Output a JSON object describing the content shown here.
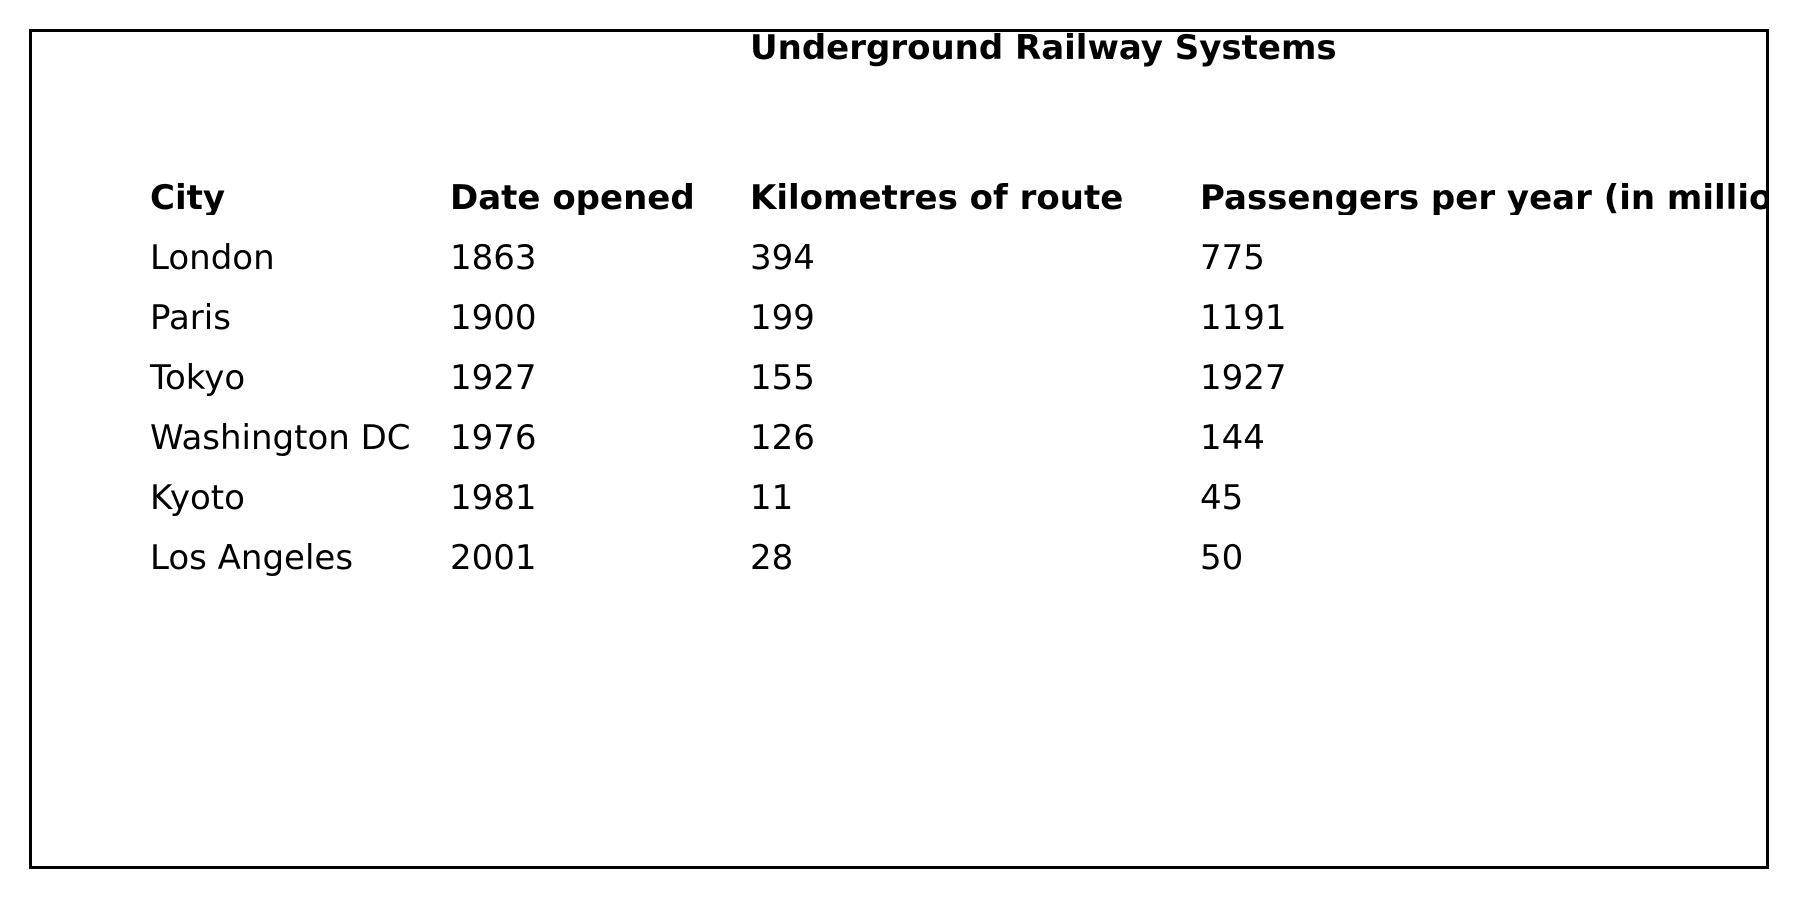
{
  "chart_data": {
    "type": "table",
    "title": "Underground Railway Systems",
    "columns": [
      "City",
      "Date opened",
      "Kilometres of route",
      "Passengers per year (in millio"
    ],
    "rows": [
      [
        "London",
        "1863",
        "394",
        "775"
      ],
      [
        "Paris",
        "1900",
        "199",
        "1191"
      ],
      [
        "Tokyo",
        "1927",
        "155",
        "1927"
      ],
      [
        "Washington DC",
        "1976",
        "126",
        "144"
      ],
      [
        "Kyoto",
        "1981",
        "11",
        "45"
      ],
      [
        "Los Angeles",
        "2001",
        "28",
        "50"
      ]
    ]
  }
}
